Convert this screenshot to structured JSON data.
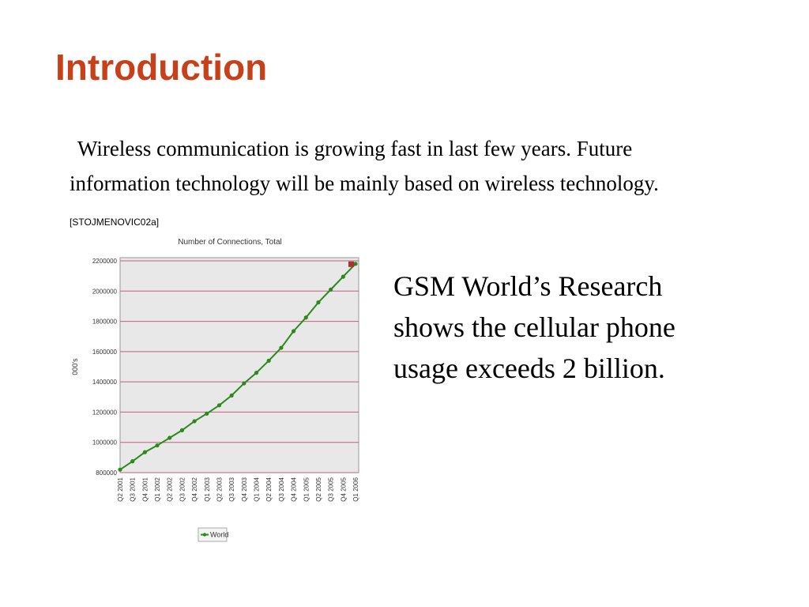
{
  "slide": {
    "title": "Introduction",
    "intro_text": "Wireless communication is growing fast in last few years. Future information technology will be mainly based on wireless technology.",
    "citation": "[STOJMENOVIC02a]",
    "side_text": "GSM World’s Research shows the cellular phone usage exceeds 2 billion."
  },
  "chart_data": {
    "type": "line",
    "title": "Number of Connections, Total",
    "ylabel": "000's",
    "xlabel": "",
    "categories": [
      "Q2 2001",
      "Q3 2001",
      "Q4 2001",
      "Q1 2002",
      "Q2 2002",
      "Q3 2002",
      "Q4 2002",
      "Q1 2003",
      "Q2 2003",
      "Q3 2003",
      "Q4 2003",
      "Q1 2004",
      "Q2 2004",
      "Q3 2004",
      "Q4 2004",
      "Q1 2005",
      "Q2 2005",
      "Q3 2005",
      "Q4 2005",
      "Q1 2006"
    ],
    "yticks": [
      "800000",
      "1000000",
      "1200000",
      "1400000",
      "1600000",
      "1800000",
      "2000000",
      "2200000"
    ],
    "ylim": [
      800000,
      2200000
    ],
    "series": [
      {
        "name": "World",
        "color": "#2a8a1a",
        "values": [
          820000,
          875000,
          935000,
          980000,
          1030000,
          1080000,
          1140000,
          1190000,
          1245000,
          1310000,
          1390000,
          1460000,
          1540000,
          1625000,
          1735000,
          1825000,
          1925000,
          2010000,
          2095000,
          2180000
        ]
      }
    ],
    "grid": true,
    "grid_color": "#c0607a",
    "plot_background": "#e8e8e8",
    "legend_position": "bottom-center",
    "last_point_marker_color": "#b03030"
  }
}
